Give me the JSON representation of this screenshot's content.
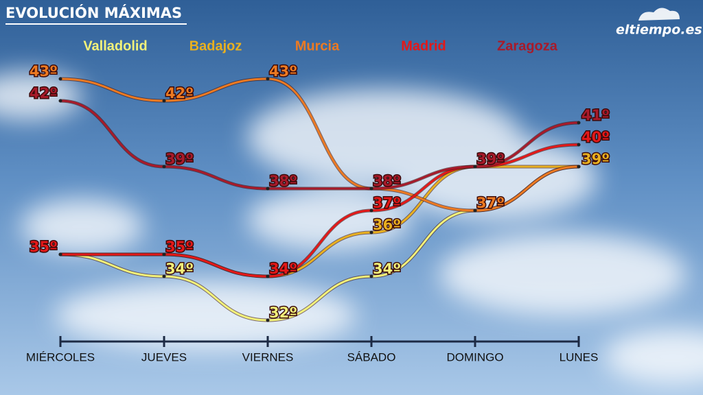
{
  "chart_data": {
    "type": "line",
    "title": "EVOLUCIÓN MÁXIMAS",
    "logo": "eltiempo.es",
    "categories": [
      "MIÉRCOLES",
      "JUEVES",
      "VIERNES",
      "SÁBADO",
      "DOMINGO",
      "LUNES"
    ],
    "ylim": [
      30,
      44
    ],
    "series": [
      {
        "name": "Valladolid",
        "color": "#f2f27a",
        "values": [
          35,
          34,
          32,
          34,
          37,
          39
        ],
        "value_labels": [
          null,
          "34º",
          "32º",
          "34º",
          null,
          null
        ]
      },
      {
        "name": "Badajoz",
        "color": "#e8b020",
        "values": [
          35,
          35,
          34,
          36,
          39,
          39
        ],
        "value_labels": [
          null,
          null,
          null,
          "36º",
          null,
          "39º"
        ]
      },
      {
        "name": "Murcia",
        "color": "#ec7a22",
        "values": [
          43,
          42,
          43,
          38,
          37,
          39
        ],
        "value_labels": [
          "43º",
          "42º",
          "43º",
          null,
          "37º",
          null
        ]
      },
      {
        "name": "Madrid",
        "color": "#e41818",
        "values": [
          35,
          35,
          34,
          37,
          39,
          40
        ],
        "value_labels": [
          "35º",
          "35º",
          "34º",
          "37º",
          null,
          "40º"
        ]
      },
      {
        "name": "Zaragoza",
        "color": "#a81a2a",
        "values": [
          42,
          39,
          38,
          38,
          39,
          41
        ],
        "value_labels": [
          "42º",
          "39º",
          "38º",
          "38º",
          "39º",
          "41º"
        ]
      }
    ]
  }
}
